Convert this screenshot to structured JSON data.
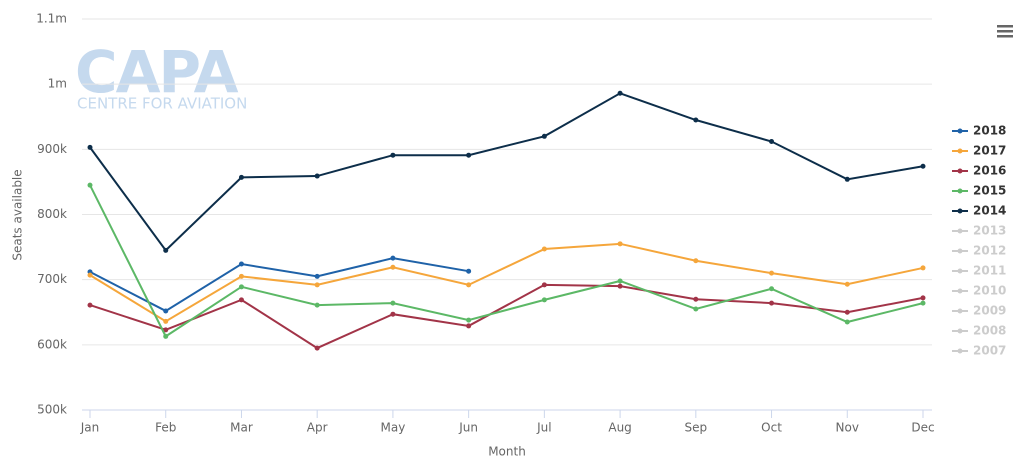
{
  "chart_data": {
    "type": "line",
    "watermark": {
      "logo": "CAPA",
      "text": "CENTRE FOR AVIATION"
    },
    "x_label": "Month",
    "y_label": "Seats available",
    "categories": [
      "Jan",
      "Feb",
      "Mar",
      "Apr",
      "May",
      "Jun",
      "Jul",
      "Aug",
      "Sep",
      "Oct",
      "Nov",
      "Dec"
    ],
    "ylim": [
      500000,
      1100000
    ],
    "yticks": [
      {
        "value": 500000,
        "label": "500k"
      },
      {
        "value": 600000,
        "label": "600k"
      },
      {
        "value": 700000,
        "label": "700k"
      },
      {
        "value": 800000,
        "label": "800k"
      },
      {
        "value": 900000,
        "label": "900k"
      },
      {
        "value": 1000000,
        "label": "1m"
      },
      {
        "value": 1100000,
        "label": "1.1m"
      }
    ],
    "grid": true,
    "legend": "right",
    "series": [
      {
        "name": "2018",
        "color": "#1f62a8",
        "visible": true,
        "values": [
          712000,
          652000,
          724000,
          705000,
          733000,
          713000,
          null,
          null,
          null,
          null,
          null,
          null
        ]
      },
      {
        "name": "2017",
        "color": "#f5a63b",
        "visible": true,
        "values": [
          707000,
          636000,
          705000,
          692000,
          719000,
          692000,
          747000,
          755000,
          729000,
          710000,
          693000,
          718000
        ]
      },
      {
        "name": "2016",
        "color": "#a23448",
        "visible": true,
        "values": [
          661000,
          623000,
          669000,
          595000,
          647000,
          629000,
          692000,
          690000,
          670000,
          664000,
          650000,
          672000
        ]
      },
      {
        "name": "2015",
        "color": "#5cb866",
        "visible": true,
        "values": [
          845000,
          613000,
          689000,
          661000,
          664000,
          638000,
          669000,
          698000,
          655000,
          686000,
          635000,
          664000
        ]
      },
      {
        "name": "2014",
        "color": "#0d2e4a",
        "visible": true,
        "values": [
          903000,
          745000,
          857000,
          859000,
          891000,
          891000,
          920000,
          986000,
          945000,
          912000,
          854000,
          874000
        ]
      },
      {
        "name": "2013",
        "color": "#cccccc",
        "visible": false,
        "values": [
          null,
          null,
          null,
          null,
          null,
          null,
          null,
          null,
          null,
          null,
          null,
          null
        ]
      },
      {
        "name": "2012",
        "color": "#cccccc",
        "visible": false,
        "values": [
          null,
          null,
          null,
          null,
          null,
          null,
          null,
          null,
          null,
          null,
          null,
          null
        ]
      },
      {
        "name": "2011",
        "color": "#cccccc",
        "visible": false,
        "values": [
          null,
          null,
          null,
          null,
          null,
          null,
          null,
          null,
          null,
          null,
          null,
          null
        ]
      },
      {
        "name": "2010",
        "color": "#cccccc",
        "visible": false,
        "values": [
          null,
          null,
          null,
          null,
          null,
          null,
          null,
          null,
          null,
          null,
          null,
          null
        ]
      },
      {
        "name": "2009",
        "color": "#cccccc",
        "visible": false,
        "values": [
          null,
          null,
          null,
          null,
          null,
          null,
          null,
          null,
          null,
          null,
          null,
          null
        ]
      },
      {
        "name": "2008",
        "color": "#cccccc",
        "visible": false,
        "values": [
          null,
          null,
          null,
          null,
          null,
          null,
          null,
          null,
          null,
          null,
          null,
          null
        ]
      },
      {
        "name": "2007",
        "color": "#cccccc",
        "visible": false,
        "values": [
          null,
          null,
          null,
          null,
          null,
          null,
          null,
          null,
          null,
          null,
          null,
          null
        ]
      }
    ]
  }
}
